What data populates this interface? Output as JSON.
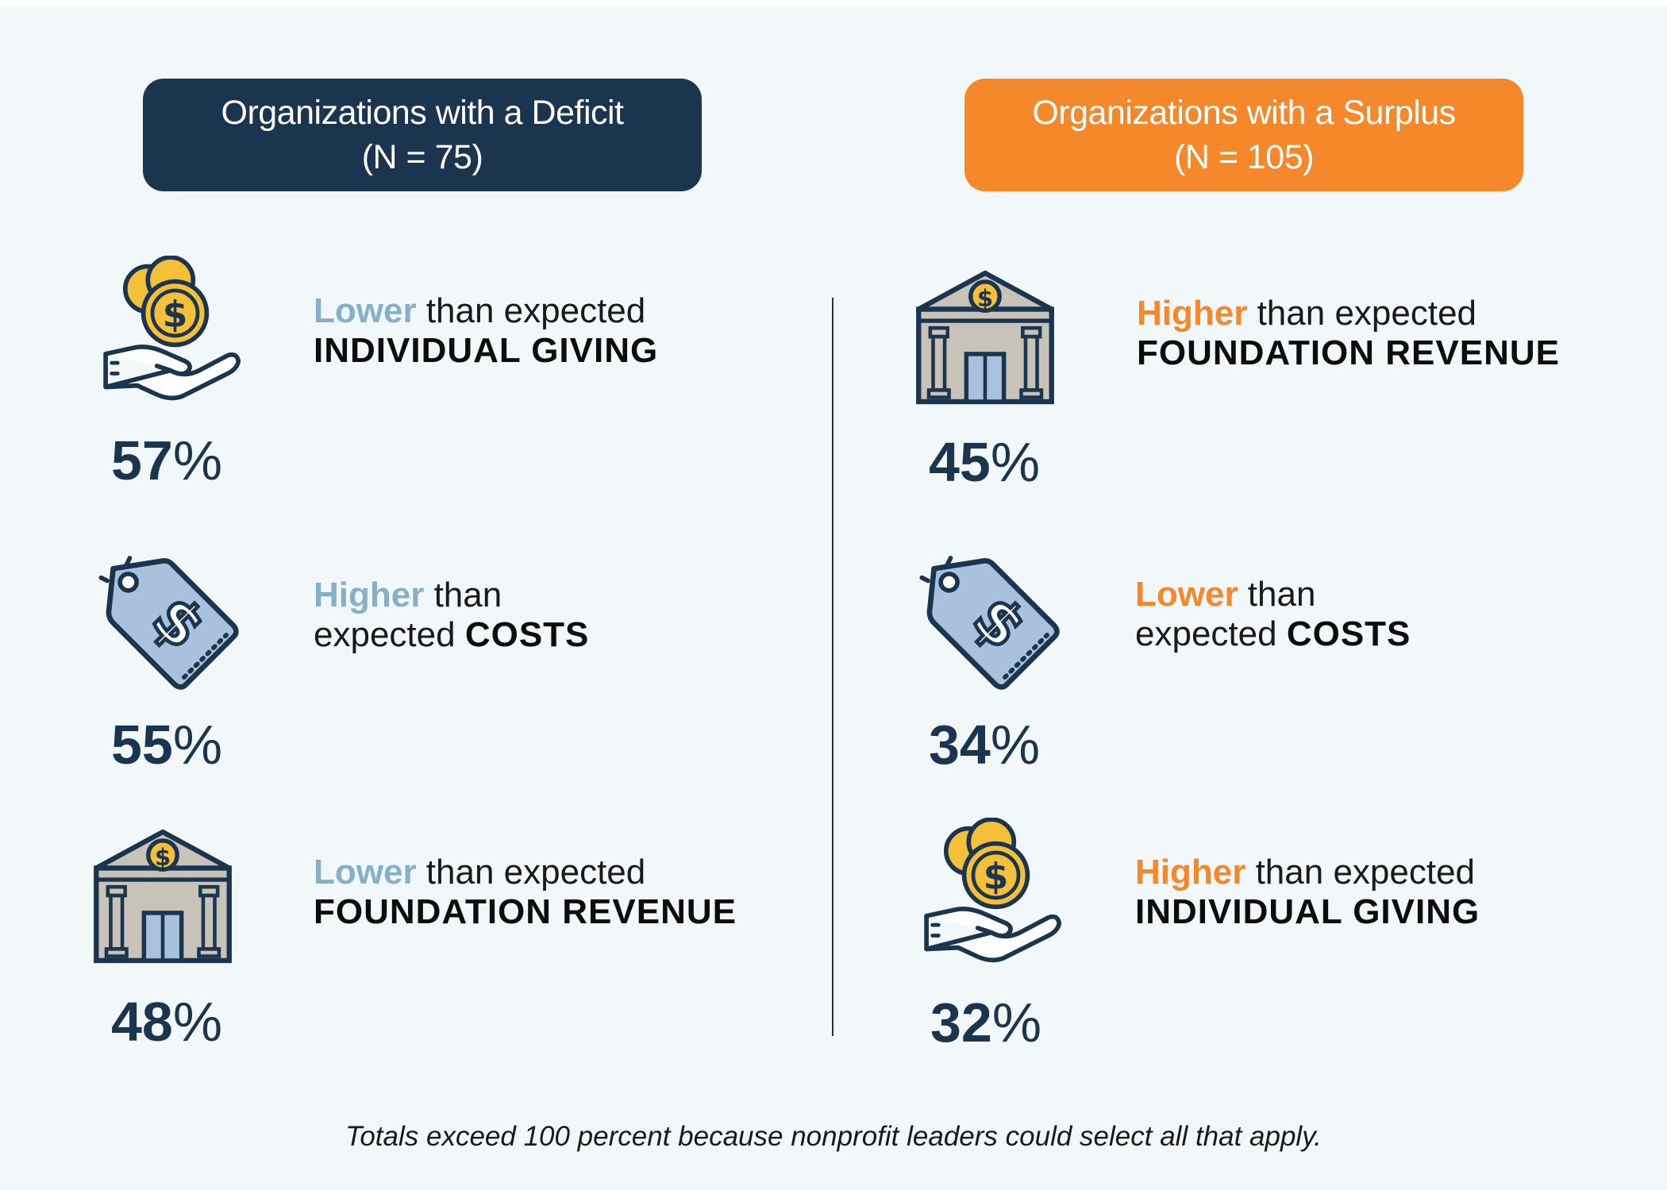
{
  "deficit": {
    "title": "Organizations with a Deficit",
    "n": "(N = 75)",
    "items": [
      {
        "icon": "hand-coins-icon",
        "pct": "57",
        "kw": "Lower",
        "rest1": " than expected",
        "line2_pre": "",
        "line2_bold": "INDIVIDUAL GIVING"
      },
      {
        "icon": "price-tag-icon",
        "pct": "55",
        "kw": "Higher",
        "rest1": " than",
        "line2_pre": "expected ",
        "line2_bold": "COSTS"
      },
      {
        "icon": "bank-building-icon",
        "pct": "48",
        "kw": "Lower",
        "rest1": " than expected",
        "line2_pre": "",
        "line2_bold": "FOUNDATION REVENUE"
      }
    ]
  },
  "surplus": {
    "title": "Organizations with a Surplus",
    "n": "(N = 105)",
    "items": [
      {
        "icon": "bank-building-icon",
        "pct": "45",
        "kw": "Higher",
        "rest1": " than expected",
        "line2_pre": "",
        "line2_bold": "FOUNDATION REVENUE"
      },
      {
        "icon": "price-tag-icon",
        "pct": "34",
        "kw": "Lower",
        "rest1": " than",
        "line2_pre": "expected ",
        "line2_bold": "COSTS"
      },
      {
        "icon": "hand-coins-icon",
        "pct": "32",
        "kw": "Higher",
        "rest1": " than expected",
        "line2_pre": "",
        "line2_bold": "INDIVIDUAL GIVING"
      }
    ]
  },
  "percent_sign": "%",
  "footnote": "Totals exceed 100 percent because nonprofit leaders could select all that apply.",
  "colors": {
    "navy": "#1b354f",
    "orange": "#f6882c",
    "light_blue": "#86afc8",
    "coin_yellow": "#f5c039",
    "tag_blue": "#a9c1dc",
    "building_gray": "#c7c3b8",
    "background": "#f2f7fa"
  }
}
